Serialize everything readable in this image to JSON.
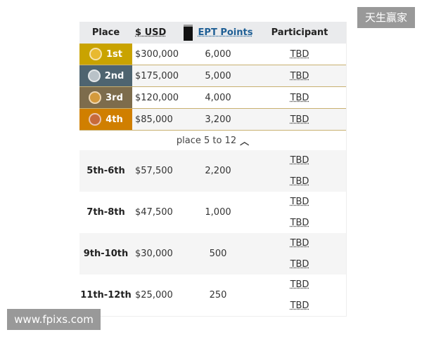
{
  "header": {
    "place": "Place",
    "usd": "$ USD",
    "ept": "EPT Points",
    "participant": "Participant"
  },
  "top_rows": [
    {
      "place": "1st",
      "usd": "$300,000",
      "points": "6,000",
      "participant": "TBD",
      "color": "#c9a300",
      "medal": "gold-medal"
    },
    {
      "place": "2nd",
      "usd": "$175,000",
      "points": "5,000",
      "participant": "TBD",
      "color": "#4e6470",
      "medal": "silver-medal"
    },
    {
      "place": "3rd",
      "usd": "$120,000",
      "points": "4,000",
      "participant": "TBD",
      "color": "#7d6c4c",
      "medal": "bronze-medal"
    },
    {
      "place": "4th",
      "usd": "$85,000",
      "points": "3,200",
      "participant": "TBD",
      "color": "#d07f00",
      "medal": "copper-medal"
    }
  ],
  "toggle": {
    "label": "place 5 to 12",
    "icon": "chevron-up-icon"
  },
  "groups": [
    {
      "place": "5th-6th",
      "usd": "$57,500",
      "points": "2,200",
      "p1": "TBD",
      "p2": "TBD"
    },
    {
      "place": "7th-8th",
      "usd": "$47,500",
      "points": "1,000",
      "p1": "TBD",
      "p2": "TBD"
    },
    {
      "place": "9th-10th",
      "usd": "$30,000",
      "points": "500",
      "p1": "TBD",
      "p2": "TBD"
    },
    {
      "place": "11th-12th",
      "usd": "$25,000",
      "points": "250",
      "p1": "TBD",
      "p2": "TBD"
    }
  ],
  "watermarks": {
    "top_right": "天生赢家",
    "bottom_left": "www.fpixs.com"
  }
}
